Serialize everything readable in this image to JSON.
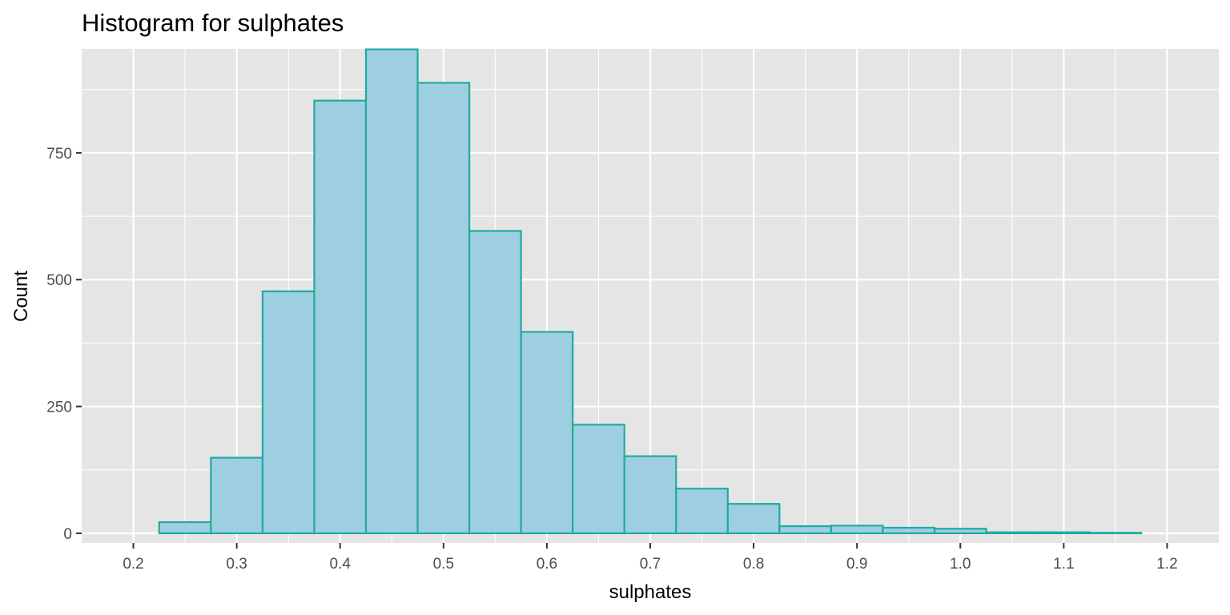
{
  "chart_data": {
    "type": "bar",
    "title": "Histogram for sulphates",
    "xlabel": "sulphates",
    "ylabel": "Count",
    "xlim": [
      0.15,
      1.25
    ],
    "ylim": [
      -19,
      955
    ],
    "x_ticks": [
      0.2,
      0.3,
      0.4,
      0.5,
      0.6,
      0.7,
      0.8,
      0.9,
      1.0,
      1.1,
      1.2
    ],
    "x_tick_labels": [
      "0.2",
      "0.3",
      "0.4",
      "0.5",
      "0.6",
      "0.7",
      "0.8",
      "0.9",
      "1.0",
      "1.1",
      "1.2"
    ],
    "y_ticks": [
      0,
      250,
      500,
      750
    ],
    "y_tick_labels": [
      "0",
      "250",
      "500",
      "750"
    ],
    "bin_width": 0.05,
    "bins": [
      {
        "center": 0.25,
        "count": 22
      },
      {
        "center": 0.3,
        "count": 149
      },
      {
        "center": 0.35,
        "count": 477
      },
      {
        "center": 0.4,
        "count": 853
      },
      {
        "center": 0.45,
        "count": 954
      },
      {
        "center": 0.5,
        "count": 888
      },
      {
        "center": 0.55,
        "count": 596
      },
      {
        "center": 0.6,
        "count": 397
      },
      {
        "center": 0.65,
        "count": 214
      },
      {
        "center": 0.7,
        "count": 152
      },
      {
        "center": 0.75,
        "count": 88
      },
      {
        "center": 0.8,
        "count": 58
      },
      {
        "center": 0.85,
        "count": 14
      },
      {
        "center": 0.9,
        "count": 15
      },
      {
        "center": 0.95,
        "count": 11
      },
      {
        "center": 1.0,
        "count": 9
      },
      {
        "center": 1.05,
        "count": 2
      },
      {
        "center": 1.1,
        "count": 2
      },
      {
        "center": 1.15,
        "count": 1
      }
    ],
    "grid": true,
    "colors": {
      "panel_background": "#e5e5e5",
      "grid": "#ffffff",
      "bar_fill": "#9ecfe0",
      "bar_outline": "#20aaa2",
      "tick_label": "#4d4d4d",
      "text": "#000000"
    }
  }
}
